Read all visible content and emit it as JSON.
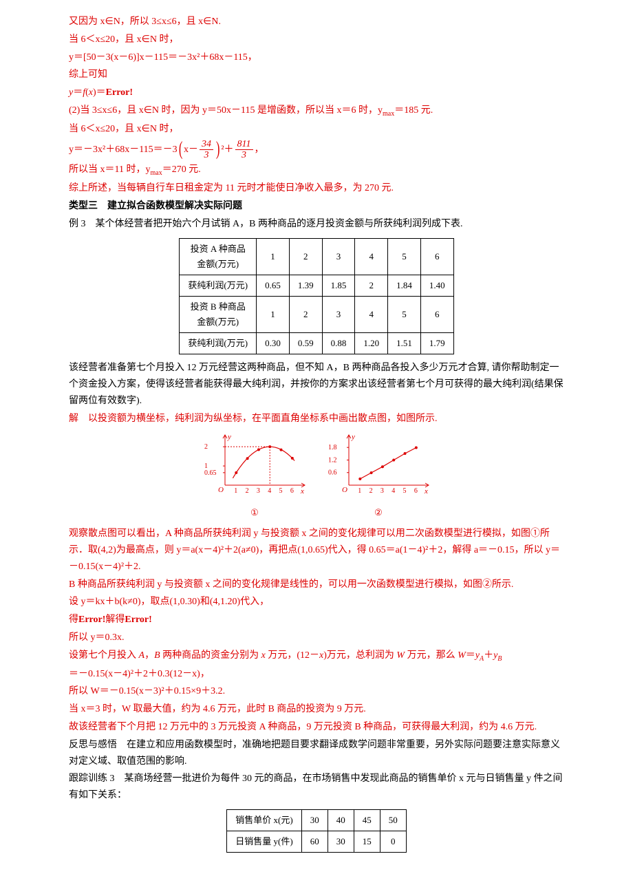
{
  "p1": "又因为 x∈N，所以 3≤x≤6，且 x∈N.",
  "p2": "当 6＜x≤20，且 x∈N 时，",
  "p3": "y＝[50－3(x－6)]x－115＝－3x²＋68x－115，",
  "p4": "综上可知",
  "p5": "y＝f(x)＝Error!",
  "p6": "(2)当 3≤x≤6，且 x∈N 时，因为 y＝50x－115 是增函数，所以当 x＝6 时，y",
  "p6b": "＝185 元.",
  "p7": "当 6＜x≤20，且 x∈N 时，",
  "p8a": "y＝－3x²＋68x－115＝－3",
  "p8b": "x－",
  "f1n": "34",
  "f1d": "3",
  "p8c": "²＋",
  "f2n": "811",
  "f2d": "3",
  "p8d": "，",
  "p9": "所以当 x＝11 时，y",
  "p9b": "＝270 元.",
  "p10": "综上所述，当每辆自行车日租金定为 11 元时才能使日净收入最多，为 270 元.",
  "h1": "类型三　建立拟合函数模型解决实际问题",
  "p11": "例 3　某个体经营者把开始六个月试销 A，B 两种商品的逐月投资金额与所获纯利润列成下表.",
  "t1": {
    "rows": [
      [
        "投资 A 种商品\n金额(万元)",
        "1",
        "2",
        "3",
        "4",
        "5",
        "6"
      ],
      [
        "获纯利润(万元)",
        "0.65",
        "1.39",
        "1.85",
        "2",
        "1.84",
        "1.40"
      ],
      [
        "投资 B 种商品\n金额(万元)",
        "1",
        "2",
        "3",
        "4",
        "5",
        "6"
      ],
      [
        "获纯利润(万元)",
        "0.30",
        "0.59",
        "0.88",
        "1.20",
        "1.51",
        "1.79"
      ]
    ]
  },
  "p12": "该经营者准备第七个月投入 12 万元经营这两种商品，但不知 A，B 两种商品各投入多少万元才合算, 请你帮助制定一个资金投入方案，使得该经营者能获得最大纯利润，并按你的方案求出该经营者第七个月可获得的最大纯利润(结果保留两位有效数字).",
  "p13": "解　以投资额为横坐标，纯利润为纵坐标，在平面直角坐标系中画出散点图，如图所示.",
  "c1": {
    "yticks": [
      "0.65",
      "1",
      "2"
    ],
    "yvals": [
      0.65,
      1,
      2
    ],
    "xticks": [
      "1",
      "2",
      "3",
      "4",
      "5",
      "6"
    ],
    "points": [
      [
        1,
        0.65
      ],
      [
        2,
        1.39
      ],
      [
        3,
        1.85
      ],
      [
        4,
        2
      ],
      [
        5,
        1.84
      ],
      [
        6,
        1.4
      ]
    ],
    "ymax": 2.4,
    "label": "①"
  },
  "c2": {
    "yticks": [
      "0.6",
      "1.2",
      "1.8"
    ],
    "yvals": [
      0.6,
      1.2,
      1.8
    ],
    "xticks": [
      "1",
      "2",
      "3",
      "4",
      "5",
      "6"
    ],
    "points": [
      [
        1,
        0.3
      ],
      [
        2,
        0.59
      ],
      [
        3,
        0.88
      ],
      [
        4,
        1.2
      ],
      [
        5,
        1.51
      ],
      [
        6,
        1.79
      ]
    ],
    "ymax": 2.2,
    "label": "②"
  },
  "p14": "观察散点图可以看出，A 种商品所获纯利润 y 与投资额 x 之间的变化规律可以用二次函数模型进行模拟，如图①所示．取(4,2)为最高点，则 y＝a(x－4)²＋2(a≠0)，再把点(1,0.65)代入，得 0.65＝a(1－4)²＋2，解得 a＝－0.15，所以 y＝－0.15(x－4)²＋2.",
  "p15": "B 种商品所获纯利润 y 与投资额 x 之间的变化规律是线性的，可以用一次函数模型进行模拟，如图②所示.",
  "p16": "设 y＝kx＋b(k≠0)，取点(1,0.30)和(4,1.20)代入，",
  "p17": "得Error!解得Error!",
  "p18": "所以 y＝0.3x.",
  "p19": "设第七个月投入 A，B 两种商品的资金分别为 x 万元，(12－x)万元，总利润为 W 万元，那么 W＝yA＋yB",
  "p20": "＝－0.15(x－4)²＋2＋0.3(12－x)，",
  "p21": "所以 W＝－0.15(x－3)²＋0.15×9＋3.2.",
  "p22": "当 x＝3 时，W 取最大值，约为 4.6 万元，此时 B 商品的投资为 9 万元.",
  "p23": "故该经营者下个月把 12 万元中的 3 万元投资 A 种商品，9 万元投资 B 种商品，可获得最大利润，约为 4.6 万元.",
  "p24": "反思与感悟　在建立和应用函数模型时，准确地把题目要求翻译成数学问题非常重要，另外实际问题要注意实际意义对定义域、取值范围的影响.",
  "p25": "跟踪训练 3　某商场经营一批进价为每件 30 元的商品，在市场销售中发现此商品的销售单价 x 元与日销售量 y 件之间有如下关系：",
  "t2": {
    "rows": [
      [
        "销售单价 x(元)",
        "30",
        "40",
        "45",
        "50"
      ],
      [
        "日销售量 y(件)",
        "60",
        "30",
        "15",
        "0"
      ]
    ]
  },
  "ymax_label": "max"
}
